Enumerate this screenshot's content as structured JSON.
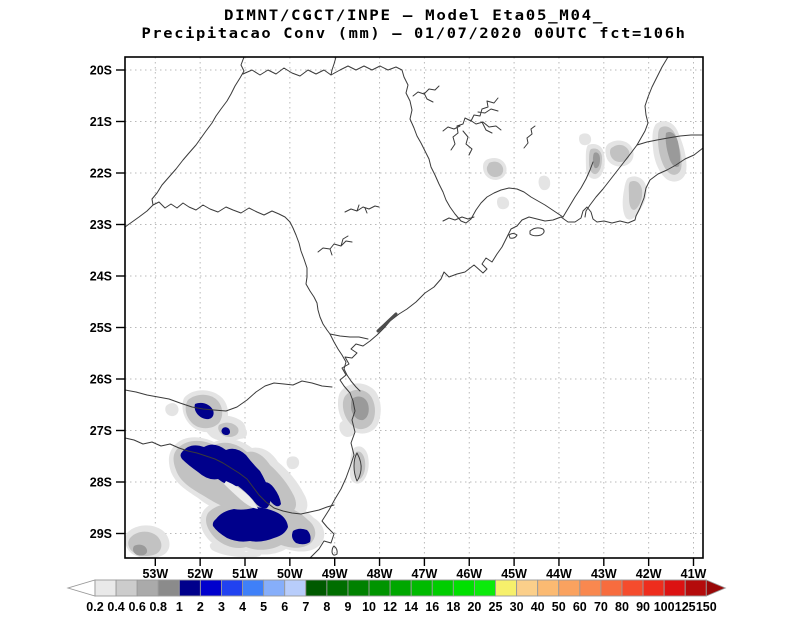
{
  "title": {
    "line1": "DIMNT/CGCT/INPE –  Model Eta05_M04_",
    "line2": "Precipitacao Conv (mm) – 01/07/2020 00UTC fct=106h"
  },
  "colors": {
    "background": "#ffffff",
    "frame": "#000000",
    "grid": "#b9b9b9",
    "land_line": "#3a3a3a",
    "shade_light": "#e4e4e4",
    "shade_mid": "#c2c2c2",
    "shade_dark": "#9a9a9a",
    "shade_darker": "#787878",
    "precip_navy": "#00008b",
    "gap_light": "#ececec",
    "coast_streak": "#4d4d4d"
  },
  "chart_data": {
    "type": "heatmap",
    "title": "DIMNT/CGCT/INPE –  Model Eta05_M04_",
    "subtitle": "Precipitacao Conv (mm) – 01/07/2020 00UTC fct=106h",
    "units": "mm",
    "grid": "dotted",
    "legend_position": "bottom",
    "x_ticks": [
      "53W",
      "52W",
      "51W",
      "50W",
      "49W",
      "48W",
      "47W",
      "46W",
      "45W",
      "44W",
      "43W",
      "42W",
      "41W"
    ],
    "y_ticks": [
      "20S",
      "21S",
      "22S",
      "23S",
      "24S",
      "25S",
      "26S",
      "27S",
      "28S",
      "29S"
    ],
    "colorbar": {
      "levels": [
        "0.2",
        "0.4",
        "0.6",
        "0.8",
        "1",
        "2",
        "3",
        "4",
        "5",
        "6",
        "7",
        "8",
        "9",
        "10",
        "12",
        "14",
        "16",
        "18",
        "20",
        "25",
        "30",
        "40",
        "50",
        "60",
        "70",
        "80",
        "90",
        "100",
        "125",
        "150"
      ],
      "cell_colors": [
        "#e9e9e9",
        "#cccccc",
        "#aaaaaa",
        "#8b8b8b",
        "#00008b",
        "#0000cd",
        "#2142f0",
        "#3f80f8",
        "#86aefa",
        "#b8cdfb",
        "#005a00",
        "#006e00",
        "#008100",
        "#009400",
        "#00a700",
        "#00ba00",
        "#00cd00",
        "#00e000",
        "#0bea0b",
        "#f6f06b",
        "#fbcf8a",
        "#fbba72",
        "#faa25f",
        "#f9884f",
        "#f76c3e",
        "#f54c2d",
        "#ee2d1d",
        "#dc1212",
        "#b40b0b"
      ],
      "left_arrow_color": "#ffffff",
      "right_arrow_color": "#990707"
    },
    "shaded_regions": [
      {
        "near": "52.1W 26.6S",
        "value_mm": "1-2 with 0.2-0.8 halo"
      },
      {
        "near": "52W-50.5W 27.3S-28.2S",
        "value_mm": "1-2 diagonal band with 0.2-1 halo"
      },
      {
        "near": "51.2W 28.8S",
        "value_mm": "1-2 large patch"
      },
      {
        "near": "49.8W 29.1S",
        "value_mm": "1-2 small patch"
      },
      {
        "near": "53.2W 29.2S",
        "value_mm": "0.2-0.8"
      },
      {
        "near": "48.4W 26.3S",
        "value_mm": "0.2-0.8"
      },
      {
        "near": "48.5W 27.6S",
        "value_mm": "0.2-0.6"
      },
      {
        "near": "41.3W 21.3S-22.3S coastal",
        "value_mm": "0.2-0.8"
      },
      {
        "near": "42.6W-43.6W 21.8S",
        "value_mm": "0.2-0.6"
      },
      {
        "near": "45.6W 21.9S",
        "value_mm": "0.2-0.4"
      }
    ]
  }
}
